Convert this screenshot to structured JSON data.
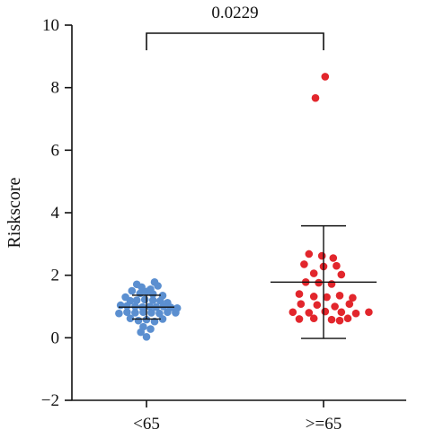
{
  "chart_data": {
    "type": "scatter",
    "title": "",
    "xlabel": "",
    "ylabel": "Riskscore",
    "ylim": [
      -2,
      10
    ],
    "yticks": [
      -2,
      0,
      2,
      4,
      6,
      8,
      10
    ],
    "categories": [
      "<65",
      ">=65"
    ],
    "grid": false,
    "annotation": {
      "text": "0.0229",
      "between": [
        "<65",
        ">=65"
      ]
    },
    "series": [
      {
        "category": "<65",
        "color": "#5b8fd0",
        "mean": 0.98,
        "sd": 0.38,
        "points": [
          [
            -0.12,
            1.71
          ],
          [
            0.1,
            1.78
          ],
          [
            -0.06,
            1.62
          ],
          [
            0.05,
            1.55
          ],
          [
            0.14,
            1.66
          ],
          [
            -0.18,
            1.5
          ],
          [
            0.0,
            1.48
          ],
          [
            -0.08,
            1.42
          ],
          [
            0.08,
            1.4
          ],
          [
            0.2,
            1.35
          ],
          [
            -0.26,
            1.3
          ],
          [
            -0.2,
            1.18
          ],
          [
            -0.12,
            1.2
          ],
          [
            -0.02,
            1.22
          ],
          [
            0.08,
            1.2
          ],
          [
            0.17,
            1.18
          ],
          [
            0.26,
            1.12
          ],
          [
            -0.32,
            1.04
          ],
          [
            -0.24,
            1.02
          ],
          [
            -0.14,
            1.0
          ],
          [
            -0.05,
            0.98
          ],
          [
            0.04,
            1.0
          ],
          [
            0.12,
            0.98
          ],
          [
            0.21,
            1.0
          ],
          [
            0.3,
            0.97
          ],
          [
            0.38,
            0.95
          ],
          [
            -0.34,
            0.78
          ],
          [
            -0.24,
            0.82
          ],
          [
            -0.14,
            0.8
          ],
          [
            -0.04,
            0.82
          ],
          [
            0.06,
            0.8
          ],
          [
            0.16,
            0.78
          ],
          [
            0.26,
            0.82
          ],
          [
            0.36,
            0.8
          ],
          [
            -0.2,
            0.62
          ],
          [
            -0.1,
            0.55
          ],
          [
            0.0,
            0.58
          ],
          [
            0.1,
            0.52
          ],
          [
            0.2,
            0.6
          ],
          [
            -0.04,
            0.35
          ],
          [
            0.05,
            0.28
          ],
          [
            -0.07,
            0.18
          ],
          [
            0.0,
            0.03
          ]
        ]
      },
      {
        "category": ">=65",
        "color": "#e2262c",
        "mean": 1.78,
        "sd": 1.8,
        "points": [
          [
            0.02,
            8.35
          ],
          [
            -0.1,
            7.67
          ],
          [
            -0.18,
            2.68
          ],
          [
            -0.02,
            2.62
          ],
          [
            0.12,
            2.55
          ],
          [
            -0.24,
            2.35
          ],
          [
            0.0,
            2.28
          ],
          [
            0.16,
            2.3
          ],
          [
            0.22,
            2.02
          ],
          [
            -0.12,
            2.06
          ],
          [
            -0.22,
            1.78
          ],
          [
            -0.06,
            1.76
          ],
          [
            0.1,
            1.72
          ],
          [
            -0.3,
            1.4
          ],
          [
            -0.12,
            1.32
          ],
          [
            0.04,
            1.3
          ],
          [
            0.2,
            1.35
          ],
          [
            0.36,
            1.28
          ],
          [
            -0.28,
            1.08
          ],
          [
            -0.08,
            1.05
          ],
          [
            0.14,
            1.0
          ],
          [
            0.32,
            1.08
          ],
          [
            -0.38,
            0.82
          ],
          [
            -0.18,
            0.8
          ],
          [
            0.02,
            0.84
          ],
          [
            0.22,
            0.82
          ],
          [
            0.4,
            0.78
          ],
          [
            0.56,
            0.82
          ],
          [
            -0.3,
            0.6
          ],
          [
            -0.12,
            0.62
          ],
          [
            0.1,
            0.58
          ],
          [
            0.3,
            0.62
          ],
          [
            0.2,
            0.55
          ]
        ]
      }
    ]
  }
}
